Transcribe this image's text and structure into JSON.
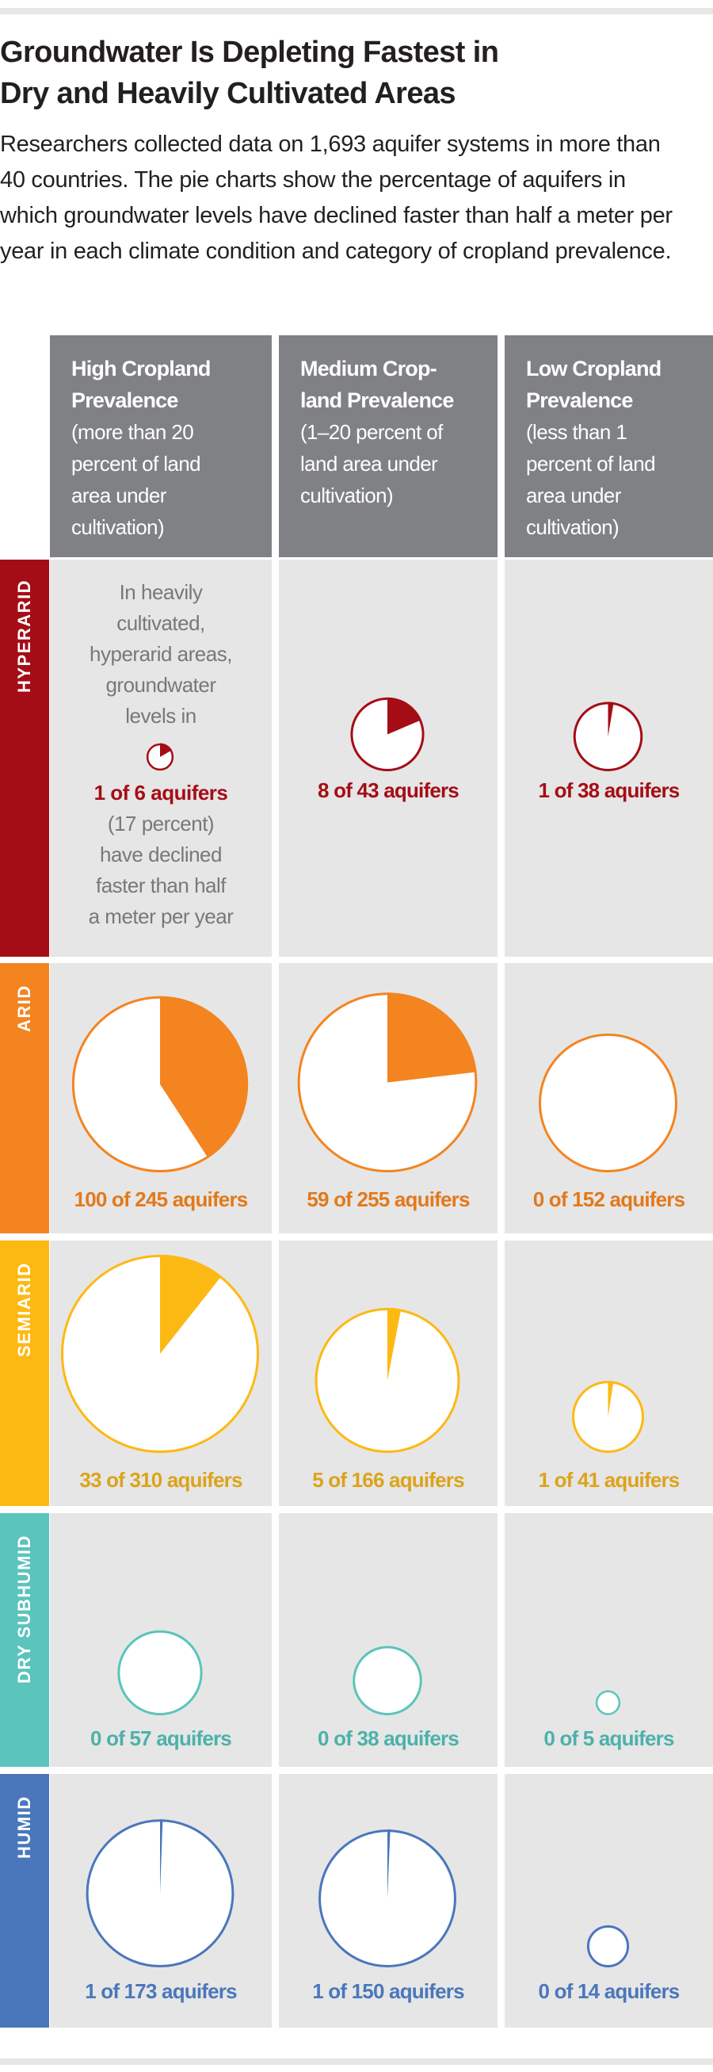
{
  "title": {
    "line1": "Groundwater Is Depleting Fastest in",
    "line2": "Dry and Heavily Cultivated Areas"
  },
  "intro": "Researchers collected data on 1,693 aquifer systems in more than 40 countries. The pie charts show the percentage of aquifers in which groundwater levels have declined faster than half a meter per year in each climate condition and category of cropland prevalence.",
  "columns": [
    {
      "bold": [
        "High Cropland",
        "Prevalence"
      ],
      "sub": [
        "(more than 20",
        "percent of land",
        "area under",
        "cultivation)"
      ]
    },
    {
      "bold": [
        "Medium Crop-",
        "land Prevalence"
      ],
      "sub": [
        "(1–20 percent of",
        "land area under",
        "cultivation)"
      ]
    },
    {
      "bold": [
        "Low Cropland",
        "Prevalence"
      ],
      "sub": [
        "(less than 1",
        "percent of land",
        "area under",
        "cultivation)"
      ]
    }
  ],
  "rows": [
    {
      "label": "HYPERARID",
      "color": "#a50d16",
      "text_color": "#a50d16"
    },
    {
      "label": "ARID",
      "color": "#f48420",
      "text_color": "#e2791b"
    },
    {
      "label": "SEMIARID",
      "color": "#fdb913",
      "text_color": "#dca31a"
    },
    {
      "label": "DRY SUBHUMID",
      "color": "#5bc4bc",
      "text_color": "#4cb1aa"
    },
    {
      "label": "HUMID",
      "color": "#4a77bc",
      "text_color": "#4a77bc"
    }
  ],
  "annotation": {
    "lines_before": [
      "In heavily",
      "cultivated,",
      "hyperarid areas,",
      "groundwater",
      "levels in"
    ],
    "highlight": "1 of 6 aquifers",
    "lines_after": [
      "(17 percent)",
      "have declined",
      "faster than half",
      "a meter per year"
    ]
  },
  "cells": [
    [
      {
        "declined": 1,
        "total": 6,
        "label": "1 of 6 aquifers"
      },
      {
        "declined": 8,
        "total": 43,
        "label": "8 of 43 aquifers"
      },
      {
        "declined": 1,
        "total": 38,
        "label": "1 of 38 aquifers"
      }
    ],
    [
      {
        "declined": 100,
        "total": 245,
        "label": "100 of 245 aquifers"
      },
      {
        "declined": 59,
        "total": 255,
        "label": "59 of 255 aquifers"
      },
      {
        "declined": 0,
        "total": 152,
        "label": "0 of 152 aquifers"
      }
    ],
    [
      {
        "declined": 33,
        "total": 310,
        "label": "33 of 310 aquifers"
      },
      {
        "declined": 5,
        "total": 166,
        "label": "5 of 166 aquifers"
      },
      {
        "declined": 1,
        "total": 41,
        "label": "1 of 41 aquifers"
      }
    ],
    [
      {
        "declined": 0,
        "total": 57,
        "label": "0 of 57 aquifers"
      },
      {
        "declined": 0,
        "total": 38,
        "label": "0 of 38 aquifers"
      },
      {
        "declined": 0,
        "total": 5,
        "label": "0 of 5 aquifers"
      }
    ],
    [
      {
        "declined": 1,
        "total": 173,
        "label": "1 of 173 aquifers"
      },
      {
        "declined": 1,
        "total": 150,
        "label": "1 of 150 aquifers"
      },
      {
        "declined": 0,
        "total": 14,
        "label": "0 of 14 aquifers"
      }
    ]
  ],
  "chart_data": {
    "type": "pie",
    "title": "Groundwater Is Depleting Fastest in Dry and Heavily Cultivated Areas",
    "subtitle": "Percentage of aquifers with groundwater levels declining faster than half a meter per year, by climate condition and cropland prevalence",
    "categories": [
      "High Cropland Prevalence",
      "Medium Cropland Prevalence",
      "Low Cropland Prevalence"
    ],
    "row_categories": [
      "Hyperarid",
      "Arid",
      "Semiarid",
      "Dry Subhumid",
      "Humid"
    ],
    "series": [
      {
        "name": "Hyperarid",
        "declined": [
          1,
          8,
          1
        ],
        "total": [
          6,
          43,
          38
        ]
      },
      {
        "name": "Arid",
        "declined": [
          100,
          59,
          0
        ],
        "total": [
          245,
          255,
          152
        ]
      },
      {
        "name": "Semiarid",
        "declined": [
          33,
          5,
          1
        ],
        "total": [
          310,
          166,
          41
        ]
      },
      {
        "name": "Dry Subhumid",
        "declined": [
          0,
          0,
          0
        ],
        "total": [
          57,
          38,
          5
        ]
      },
      {
        "name": "Humid",
        "declined": [
          1,
          1,
          0
        ],
        "total": [
          173,
          150,
          14
        ]
      }
    ],
    "annotations": [
      "1 of 6 aquifers (17 percent)"
    ],
    "size_encoding": "pie area proportional to total aquifers"
  }
}
